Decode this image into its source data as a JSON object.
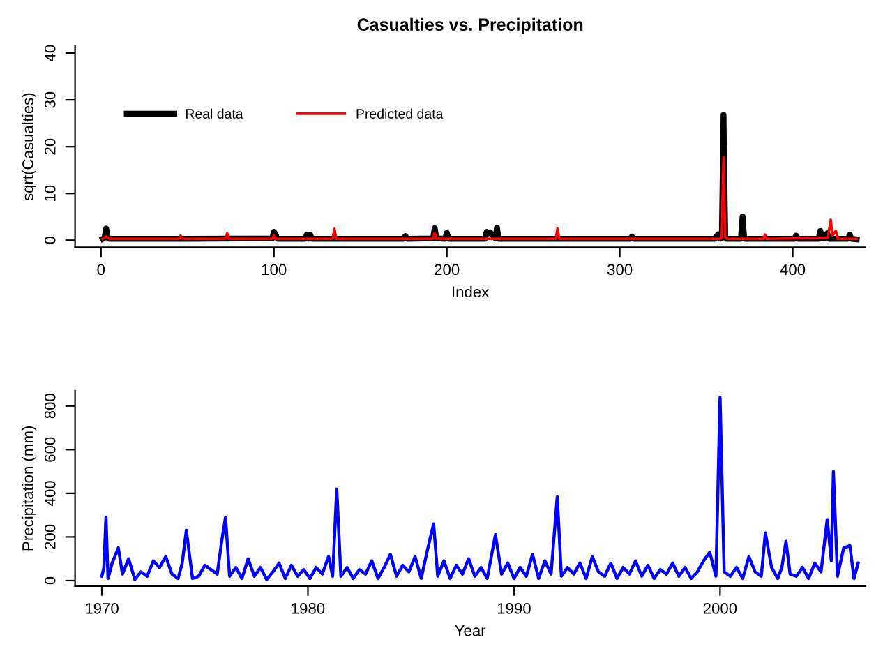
{
  "chart_data": [
    {
      "type": "line",
      "title": "Casualties vs. Precipitation",
      "xlabel": "Index",
      "ylabel": "sqrt(Casualties)",
      "xlim": [
        -15,
        442
      ],
      "xticks": [
        0,
        100,
        200,
        300,
        400
      ],
      "ylim": [
        -1.5,
        41.5
      ],
      "yticks": [
        0,
        10,
        20,
        30,
        40
      ],
      "legend": "top left",
      "grid": false,
      "series": [
        {
          "name": "Real data",
          "color": "#000000",
          "x": [
            1,
            2,
            3,
            4,
            5,
            50,
            99,
            100,
            101,
            102,
            118,
            119,
            120,
            121,
            122,
            175,
            176,
            177,
            192,
            193,
            194,
            199,
            200,
            201,
            222,
            223,
            224,
            225,
            228,
            229,
            230,
            306,
            307,
            308,
            355,
            357,
            358,
            359,
            360,
            361,
            362,
            370,
            371,
            372,
            401,
            402,
            403,
            415,
            416,
            417,
            419,
            420,
            421,
            432,
            433,
            434,
            437
          ],
          "values": [
            0.3,
            0.5,
            2.5,
            0.5,
            0.3,
            0.3,
            0.4,
            1.8,
            1.2,
            0.3,
            0.3,
            1.2,
            0.3,
            1.2,
            0.3,
            0.3,
            0.9,
            0.3,
            0.4,
            2.6,
            0.4,
            0.3,
            1.6,
            0.3,
            0.3,
            1.8,
            1.5,
            1.7,
            0.4,
            2.7,
            0.3,
            0.3,
            0.8,
            0.3,
            0.3,
            1.3,
            0.3,
            0.5,
            26.8,
            0.5,
            0.3,
            0.3,
            5.1,
            0.3,
            0.3,
            1.0,
            0.3,
            0.3,
            2.0,
            0.5,
            0.5,
            1.5,
            0.3,
            0.3,
            1.2,
            0.3,
            0.2
          ]
        },
        {
          "name": "Predicted data",
          "color": "#ff0000",
          "x": [
            1,
            3,
            5,
            45,
            46,
            47,
            72,
            73,
            74,
            99,
            100,
            101,
            134,
            135,
            136,
            192,
            193,
            194,
            263,
            264,
            265,
            358,
            359,
            360,
            361,
            362,
            383,
            384,
            385,
            420,
            421,
            422,
            423,
            425,
            426,
            437
          ],
          "values": [
            0.3,
            0.8,
            0.3,
            0.3,
            1.0,
            0.3,
            0.3,
            1.5,
            0.3,
            0.3,
            1.0,
            0.3,
            0.3,
            2.5,
            0.3,
            0.3,
            1.5,
            0.3,
            0.3,
            2.5,
            0.3,
            0.3,
            0.6,
            17.7,
            0.6,
            0.3,
            0.3,
            1.2,
            0.3,
            0.5,
            2.0,
            4.4,
            1.0,
            2.0,
            0.3,
            0.3
          ]
        }
      ]
    },
    {
      "type": "line",
      "xlabel": "Year",
      "ylabel": "Precipitation (mm)",
      "xlim": [
        1968.7,
        2007.05
      ],
      "xticks": [
        1970,
        1980,
        1990,
        2000
      ],
      "ylim": [
        -25,
        870
      ],
      "yticks": [
        0,
        200,
        400,
        600,
        800
      ],
      "grid": false,
      "series": [
        {
          "color": "#0000ff",
          "x": [
            1970.0,
            1970.1,
            1970.2,
            1970.3,
            1970.5,
            1970.8,
            1971.0,
            1971.3,
            1971.6,
            1971.9,
            1972.2,
            1972.5,
            1972.8,
            1973.1,
            1973.4,
            1973.7,
            1973.9,
            1974.1,
            1974.4,
            1974.7,
            1975.0,
            1975.3,
            1975.6,
            1975.8,
            1976.0,
            1976.2,
            1976.5,
            1976.8,
            1977.1,
            1977.4,
            1977.7,
            1978.0,
            1978.3,
            1978.6,
            1978.9,
            1979.2,
            1979.5,
            1979.8,
            1980.1,
            1980.4,
            1980.7,
            1981.0,
            1981.2,
            1981.4,
            1981.6,
            1981.9,
            1982.2,
            1982.5,
            1982.8,
            1983.1,
            1983.4,
            1983.7,
            1984.0,
            1984.3,
            1984.6,
            1984.9,
            1985.2,
            1985.5,
            1985.8,
            1986.1,
            1986.3,
            1986.6,
            1986.9,
            1987.2,
            1987.5,
            1987.8,
            1988.1,
            1988.4,
            1988.7,
            1989.1,
            1989.4,
            1989.7,
            1990.0,
            1990.3,
            1990.6,
            1990.9,
            1991.2,
            1991.5,
            1991.8,
            1992.1,
            1992.3,
            1992.6,
            1992.9,
            1993.2,
            1993.5,
            1993.8,
            1994.1,
            1994.4,
            1994.7,
            1995.0,
            1995.3,
            1995.6,
            1995.9,
            1996.2,
            1996.5,
            1996.8,
            1997.1,
            1997.4,
            1997.7,
            1998.0,
            1998.3,
            1998.6,
            1998.9,
            1999.2,
            1999.5,
            1999.8,
            2000.0,
            2000.2,
            2000.5,
            2000.8,
            2001.1,
            2001.4,
            2001.7,
            2002.0,
            2002.2,
            2002.5,
            2002.8,
            2003.0,
            2003.2,
            2003.4,
            2003.7,
            2004.0,
            2004.3,
            2004.6,
            2004.9,
            2005.2,
            2005.4,
            2005.5,
            2005.7,
            2006.0,
            2006.3,
            2006.5,
            2006.7
          ],
          "values": [
            20,
            60,
            290,
            10,
            80,
            150,
            30,
            100,
            5,
            40,
            20,
            90,
            60,
            110,
            30,
            10,
            80,
            230,
            10,
            20,
            70,
            50,
            30,
            170,
            290,
            20,
            60,
            10,
            100,
            20,
            60,
            5,
            40,
            80,
            10,
            70,
            20,
            50,
            10,
            60,
            30,
            110,
            20,
            420,
            20,
            60,
            10,
            50,
            30,
            90,
            10,
            60,
            120,
            20,
            70,
            40,
            110,
            10,
            140,
            260,
            20,
            90,
            10,
            70,
            30,
            100,
            20,
            60,
            10,
            210,
            30,
            80,
            10,
            60,
            20,
            120,
            10,
            90,
            30,
            384,
            20,
            60,
            30,
            80,
            10,
            110,
            40,
            20,
            80,
            10,
            60,
            30,
            90,
            20,
            70,
            10,
            50,
            30,
            80,
            20,
            60,
            10,
            40,
            90,
            130,
            20,
            840,
            40,
            20,
            60,
            10,
            110,
            40,
            20,
            218,
            60,
            10,
            60,
            180,
            30,
            20,
            60,
            10,
            80,
            40,
            280,
            90,
            500,
            20,
            150,
            160,
            10,
            80
          ]
        }
      ]
    }
  ]
}
